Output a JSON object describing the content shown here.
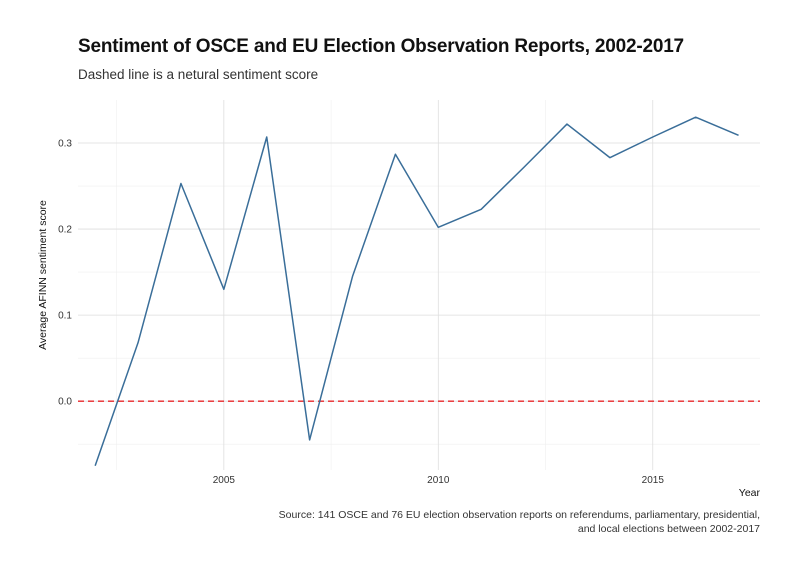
{
  "header": {
    "title": "Sentiment of OSCE and EU Election Observation Reports, 2002-2017",
    "subtitle": "Dashed line is a netural sentiment score"
  },
  "footer": {
    "caption_line1": "Source: 141 OSCE and 76 EU election observation reports on referendums, parliamentary, presidential,",
    "caption_line2": "and local elections between 2002-2017"
  },
  "colors": {
    "line": "#3a6e99",
    "reference": "#e8262a",
    "grid_major": "#dedede",
    "grid_minor": "#efefef"
  },
  "chart_data": {
    "type": "line",
    "title": "Sentiment of OSCE and EU Election Observation Reports, 2002-2017",
    "subtitle": "Dashed line is a netural sentiment score",
    "xlabel": "Year",
    "ylabel": "Average AFINN sentiment score",
    "x": [
      2002,
      2003,
      2004,
      2005,
      2006,
      2007,
      2008,
      2009,
      2010,
      2011,
      2012,
      2013,
      2014,
      2015,
      2016,
      2017
    ],
    "series": [
      {
        "values": [
          -0.075,
          0.068,
          0.253,
          0.13,
          0.307,
          -0.045,
          0.145,
          0.287,
          0.202,
          0.223,
          0.272,
          0.322,
          0.283,
          0.307,
          0.33,
          0.309
        ]
      }
    ],
    "xlim": [
      2001.6,
      2017.5
    ],
    "ylim": [
      -0.08,
      0.35
    ],
    "xticks": [
      2005,
      2010,
      2015
    ],
    "yticks": [
      0.0,
      0.1,
      0.2,
      0.3
    ],
    "ytick_labels": [
      "0.0",
      "0.1",
      "0.2",
      "0.3"
    ],
    "reference_line": {
      "y": 0.0,
      "style": "dashed"
    },
    "grid": true,
    "legend": "none"
  }
}
